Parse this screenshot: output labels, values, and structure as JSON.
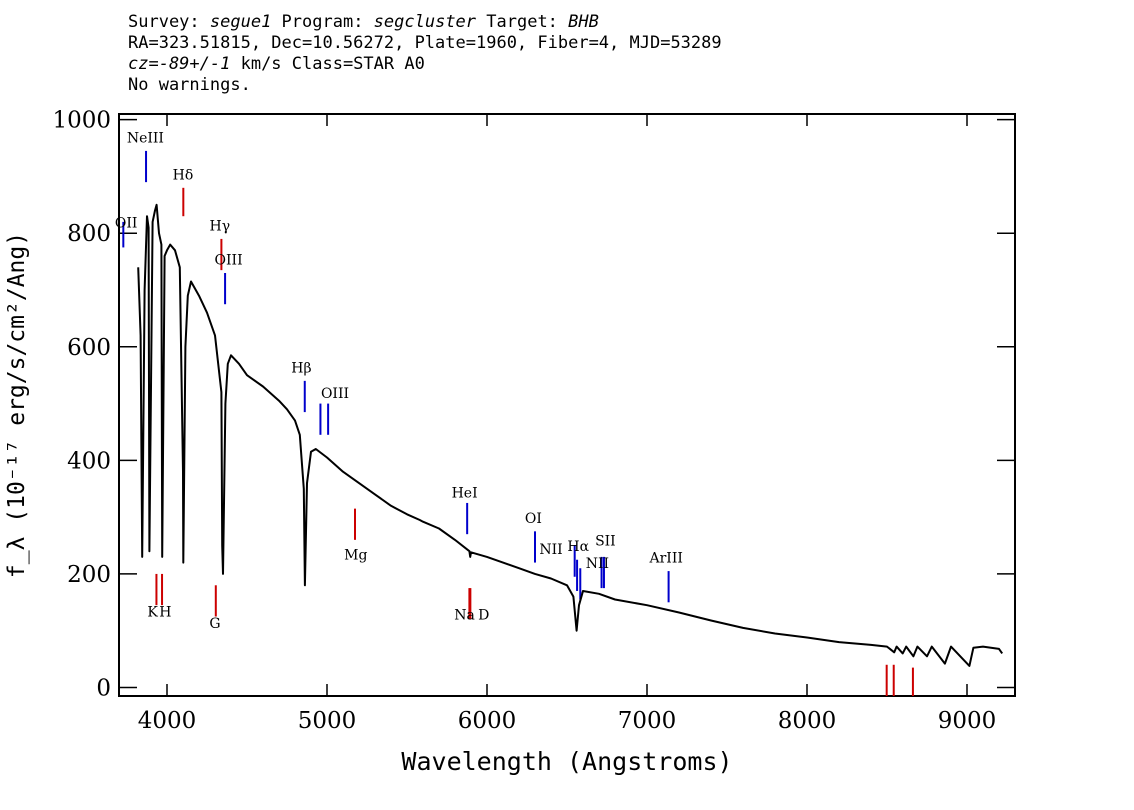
{
  "header": {
    "line1": {
      "survey_label": "Survey: ",
      "survey": "segue1",
      "program_label": " Program: ",
      "program": "segcluster",
      "target_label": " Target: ",
      "target": "BHB"
    },
    "line2": "RA=323.51815, Dec=10.56272, Plate=1960, Fiber=4, MJD=53289",
    "line3": {
      "cz": "cz=-89+/-1",
      "rest": " km/s Class=STAR A0"
    },
    "line4": "No warnings."
  },
  "chart_data": {
    "type": "line",
    "xlabel": "Wavelength (Angstroms)",
    "ylabel": "f_λ (10⁻¹⁷ erg/s/cm²/Ang)",
    "xlim": [
      3700,
      9300
    ],
    "ylim": [
      -15,
      1010
    ],
    "x_ticks": [
      4000,
      5000,
      6000,
      7000,
      8000,
      9000
    ],
    "y_ticks": [
      0,
      200,
      400,
      600,
      800,
      1000
    ],
    "series": [
      {
        "color": "#000000",
        "points": [
          [
            3820,
            740
          ],
          [
            3835,
            620
          ],
          [
            3845,
            230
          ],
          [
            3860,
            700
          ],
          [
            3875,
            830
          ],
          [
            3885,
            810
          ],
          [
            3890,
            240
          ],
          [
            3910,
            820
          ],
          [
            3925,
            840
          ],
          [
            3935,
            850
          ],
          [
            3950,
            800
          ],
          [
            3965,
            780
          ],
          [
            3970,
            230
          ],
          [
            3985,
            760
          ],
          [
            4000,
            770
          ],
          [
            4020,
            780
          ],
          [
            4050,
            770
          ],
          [
            4080,
            740
          ],
          [
            4100,
            380
          ],
          [
            4102,
            220
          ],
          [
            4115,
            600
          ],
          [
            4130,
            690
          ],
          [
            4150,
            715
          ],
          [
            4200,
            690
          ],
          [
            4250,
            660
          ],
          [
            4300,
            620
          ],
          [
            4340,
            520
          ],
          [
            4345,
            250
          ],
          [
            4350,
            200
          ],
          [
            4365,
            500
          ],
          [
            4380,
            570
          ],
          [
            4400,
            585
          ],
          [
            4450,
            570
          ],
          [
            4500,
            550
          ],
          [
            4600,
            530
          ],
          [
            4700,
            505
          ],
          [
            4750,
            490
          ],
          [
            4800,
            470
          ],
          [
            4830,
            445
          ],
          [
            4855,
            350
          ],
          [
            4862,
            180
          ],
          [
            4875,
            360
          ],
          [
            4900,
            415
          ],
          [
            4930,
            420
          ],
          [
            5000,
            405
          ],
          [
            5100,
            380
          ],
          [
            5200,
            360
          ],
          [
            5300,
            340
          ],
          [
            5400,
            320
          ],
          [
            5500,
            305
          ],
          [
            5580,
            295
          ],
          [
            5600,
            292
          ],
          [
            5700,
            280
          ],
          [
            5800,
            260
          ],
          [
            5890,
            240
          ],
          [
            5895,
            230
          ],
          [
            5900,
            238
          ],
          [
            6000,
            230
          ],
          [
            6100,
            220
          ],
          [
            6200,
            210
          ],
          [
            6300,
            200
          ],
          [
            6400,
            192
          ],
          [
            6500,
            180
          ],
          [
            6540,
            160
          ],
          [
            6560,
            100
          ],
          [
            6575,
            145
          ],
          [
            6600,
            170
          ],
          [
            6700,
            165
          ],
          [
            6800,
            155
          ],
          [
            7000,
            145
          ],
          [
            7200,
            132
          ],
          [
            7400,
            118
          ],
          [
            7600,
            105
          ],
          [
            7800,
            95
          ],
          [
            8000,
            88
          ],
          [
            8200,
            80
          ],
          [
            8400,
            75
          ],
          [
            8500,
            72
          ],
          [
            8545,
            62
          ],
          [
            8560,
            72
          ],
          [
            8598,
            60
          ],
          [
            8620,
            72
          ],
          [
            8665,
            55
          ],
          [
            8690,
            72
          ],
          [
            8750,
            55
          ],
          [
            8780,
            72
          ],
          [
            8862,
            42
          ],
          [
            8900,
            72
          ],
          [
            9015,
            38
          ],
          [
            9040,
            70
          ],
          [
            9100,
            72
          ],
          [
            9200,
            68
          ],
          [
            9220,
            60
          ]
        ]
      }
    ],
    "line_marks": [
      {
        "label": "OII",
        "x": 3727,
        "color": "#0000cc",
        "y_top": 820,
        "y_bottom": 775
      },
      {
        "label": "NeIII",
        "x": 3869,
        "color": "#0000cc",
        "y_top": 945,
        "y_bottom": 890
      },
      {
        "label": "Hδ",
        "x": 4102,
        "color": "#cc0000",
        "y_top": 880,
        "y_bottom": 830
      },
      {
        "label": "Hγ",
        "x": 4340,
        "color": "#cc0000",
        "y_top": 790,
        "y_bottom": 735
      },
      {
        "label": "OIII",
        "x": 4363,
        "color": "#0000cc",
        "y_top": 730,
        "y_bottom": 675
      },
      {
        "label": "Hβ",
        "x": 4861,
        "color": "#0000cc",
        "y_top": 540,
        "y_bottom": 485
      },
      {
        "label": "OIII",
        "x": 4959,
        "color": "#0000cc",
        "y_top": 500,
        "y_bottom": 445
      },
      {
        "label": "",
        "x": 5007,
        "color": "#0000cc",
        "y_top": 500,
        "y_bottom": 445
      },
      {
        "label": "Mg",
        "x": 5175,
        "color": "#cc0000",
        "y_top": 315,
        "y_bottom": 260
      },
      {
        "label": "HeI",
        "x": 5876,
        "color": "#0000cc",
        "y_top": 325,
        "y_bottom": 270
      },
      {
        "label": "OI",
        "x": 6300,
        "color": "#0000cc",
        "y_top": 275,
        "y_bottom": 220
      },
      {
        "label": "NII",
        "x": 6548,
        "color": "#0000cc",
        "y_top": 250,
        "y_bottom": 195
      },
      {
        "label": "Hα",
        "x": 6563,
        "color": "#0000cc",
        "y_top": 225,
        "y_bottom": 170
      },
      {
        "label": "NII",
        "x": 6583,
        "color": "#0000cc",
        "y_top": 210,
        "y_bottom": 155
      },
      {
        "label": "SII",
        "x": 6716,
        "color": "#0000cc",
        "y_top": 230,
        "y_bottom": 175
      },
      {
        "label": "",
        "x": 6731,
        "color": "#0000cc",
        "y_top": 230,
        "y_bottom": 175
      },
      {
        "label": "ArIII",
        "x": 7135,
        "color": "#0000cc",
        "y_top": 205,
        "y_bottom": 150
      },
      {
        "label": "K",
        "x": 3934,
        "color": "#cc0000",
        "y_top": 200,
        "y_bottom": 145
      },
      {
        "label": "H",
        "x": 3969,
        "color": "#cc0000",
        "y_top": 200,
        "y_bottom": 145
      },
      {
        "label": "G",
        "x": 4305,
        "color": "#cc0000",
        "y_top": 180,
        "y_bottom": 125
      },
      {
        "label": "Na",
        "x": 5890,
        "color": "#cc0000",
        "y_top": 175,
        "y_bottom": 120
      },
      {
        "label": "D",
        "x": 5896,
        "color": "#cc0000",
        "y_top": 175,
        "y_bottom": 120
      },
      {
        "label": "",
        "x": 8498,
        "color": "#cc0000",
        "y_top": 40,
        "y_bottom": -15
      },
      {
        "label": "",
        "x": 8542,
        "color": "#cc0000",
        "y_top": 40,
        "y_bottom": -15
      },
      {
        "label": "",
        "x": 8662,
        "color": "#cc0000",
        "y_top": 35,
        "y_bottom": -15
      }
    ],
    "line_labels": [
      {
        "text": "OII",
        "x": 3745,
        "y": 810
      },
      {
        "text": "NeIII",
        "x": 3865,
        "y": 960
      },
      {
        "text": "Hδ",
        "x": 4100,
        "y": 895
      },
      {
        "text": "Hγ",
        "x": 4330,
        "y": 805
      },
      {
        "text": "OIII",
        "x": 4385,
        "y": 745
      },
      {
        "text": "Hβ",
        "x": 4840,
        "y": 555
      },
      {
        "text": "OIII",
        "x": 5050,
        "y": 510
      },
      {
        "text": "Mg",
        "x": 5180,
        "y": 225
      },
      {
        "text": "HeI",
        "x": 5860,
        "y": 335
      },
      {
        "text": "OI",
        "x": 6290,
        "y": 290
      },
      {
        "text": "NII",
        "x": 6400,
        "y": 235
      },
      {
        "text": "Hα",
        "x": 6570,
        "y": 240
      },
      {
        "text": "NII",
        "x": 6690,
        "y": 210
      },
      {
        "text": "SII",
        "x": 6740,
        "y": 250
      },
      {
        "text": "ArIII",
        "x": 7120,
        "y": 220
      },
      {
        "text": "K",
        "x": 3910,
        "y": 125
      },
      {
        "text": "H",
        "x": 3990,
        "y": 125
      },
      {
        "text": "G",
        "x": 4300,
        "y": 105
      },
      {
        "text": "Na",
        "x": 5860,
        "y": 120
      },
      {
        "text": "D",
        "x": 5980,
        "y": 120
      }
    ]
  }
}
